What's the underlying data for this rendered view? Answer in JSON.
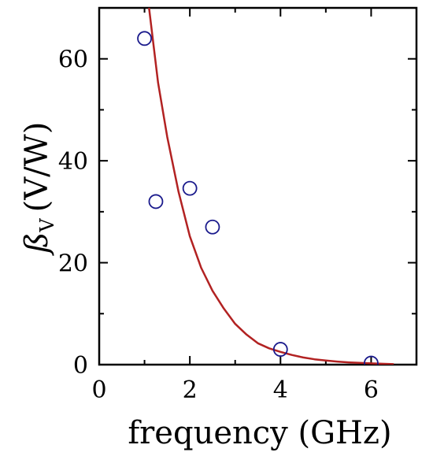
{
  "chart_data": {
    "type": "scatter",
    "title": "",
    "xlabel": "frequency (GHz)",
    "ylabel": {
      "symbol": "ß",
      "subscript": "V",
      "units": "(V/W)"
    },
    "xlim": [
      0,
      7
    ],
    "ylim": [
      0,
      70
    ],
    "xticks": [
      0,
      2,
      4,
      6
    ],
    "yticks": [
      0,
      20,
      40,
      60
    ],
    "grid": false,
    "legend": "none",
    "series": [
      {
        "type": "scatter",
        "marker": "open-circle",
        "color": "#1a1a8c",
        "x": [
          1.0,
          1.25,
          2.0,
          2.5,
          4.0,
          6.0
        ],
        "y": [
          64,
          32,
          34.6,
          27,
          3,
          0.3
        ]
      },
      {
        "type": "line",
        "color": "#b22222",
        "x": [
          1.1,
          1.3,
          1.5,
          1.75,
          2.0,
          2.25,
          2.5,
          2.75,
          3.0,
          3.25,
          3.5,
          3.75,
          4.0,
          4.25,
          4.5,
          4.75,
          5.0,
          5.25,
          5.5,
          5.75,
          6.0,
          6.3,
          6.5
        ],
        "y": [
          70,
          55.3,
          44.7,
          33.9,
          25.2,
          19.0,
          14.5,
          11.0,
          8.0,
          5.9,
          4.2,
          3.2,
          2.5,
          1.9,
          1.4,
          1.05,
          0.8,
          0.6,
          0.45,
          0.34,
          0.25,
          0.15,
          0.1
        ]
      }
    ]
  }
}
